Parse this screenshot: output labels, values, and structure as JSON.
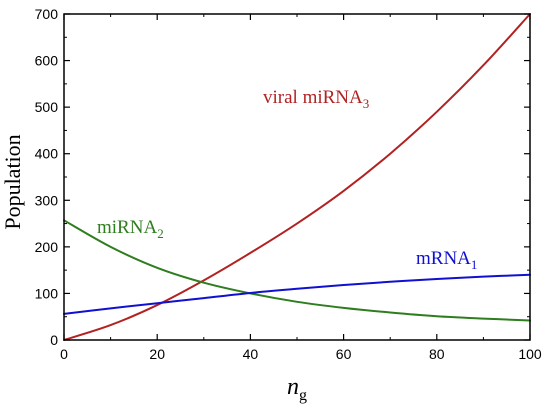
{
  "chart_data": {
    "type": "line",
    "xlabel_main": "n",
    "xlabel_sub": "g",
    "ylabel": "Population",
    "xlim": [
      0,
      100
    ],
    "ylim": [
      0,
      700
    ],
    "xticks": [
      0,
      20,
      40,
      60,
      80,
      100
    ],
    "yticks": [
      0,
      100,
      200,
      300,
      400,
      500,
      600,
      700
    ],
    "grid": false,
    "series": [
      {
        "label_main": "viral  miRNA",
        "label_sub": "3",
        "color": "#b22222",
        "x": [
          0,
          10,
          20,
          30,
          40,
          50,
          60,
          70,
          80,
          90,
          100
        ],
        "y": [
          0,
          32,
          75,
          128,
          187,
          250,
          320,
          400,
          490,
          590,
          700
        ]
      },
      {
        "label_main": "miRNA",
        "label_sub": "2",
        "color": "#2e7d1e",
        "x": [
          0,
          10,
          20,
          30,
          40,
          50,
          60,
          70,
          80,
          90,
          100
        ],
        "y": [
          257,
          200,
          155,
          123,
          100,
          82,
          69,
          59,
          51,
          46,
          42
        ]
      },
      {
        "label_main": "mRNA",
        "label_sub": "1",
        "color": "#1010d0",
        "x": [
          0,
          10,
          20,
          30,
          40,
          50,
          60,
          70,
          80,
          90,
          100
        ],
        "y": [
          56,
          68,
          79,
          90,
          101,
          110,
          118,
          125,
          131,
          136,
          140
        ]
      }
    ]
  }
}
